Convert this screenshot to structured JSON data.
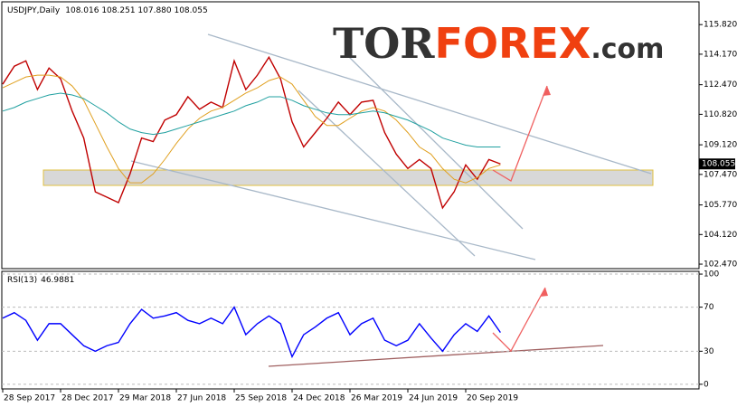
{
  "logo": {
    "prefix": "TOR",
    "brand": "FOREX",
    "suffix": ".com"
  },
  "chart_data": [
    {
      "type": "line",
      "title": "USDJPY,Daily",
      "subtitle": "108.016 108.251 107.880 108.055",
      "categories": [
        "28 Sep 2017",
        null,
        null,
        null,
        null,
        "28 Dec 2017",
        null,
        null,
        null,
        null,
        "29 Mar 2018",
        null,
        null,
        null,
        null,
        "27 Jun 2018",
        null,
        null,
        null,
        null,
        "25 Sep 2018",
        null,
        null,
        null,
        null,
        "24 Dec 2018",
        null,
        null,
        null,
        null,
        "26 Mar 2019",
        null,
        null,
        null,
        null,
        "24 Jun 2019",
        null,
        null,
        null,
        null,
        "20 Sep 2019",
        null,
        null,
        null
      ],
      "series": [
        {
          "color": "#c00000",
          "values": [
            112.5,
            113.5,
            113.8,
            112.2,
            113.4,
            112.8,
            111.0,
            109.5,
            106.5,
            106.2,
            105.9,
            107.5,
            109.5,
            109.3,
            110.5,
            110.8,
            111.8,
            111.1,
            111.5,
            111.2,
            113.8,
            112.2,
            113.0,
            114.0,
            112.8,
            110.4,
            109.0,
            109.8,
            110.6,
            111.5,
            110.8,
            111.5,
            111.6,
            109.8,
            108.6,
            107.8,
            108.3,
            107.8,
            105.6,
            106.5,
            108.0,
            107.2,
            108.3,
            108.055
          ]
        },
        {
          "color": "#e0a020",
          "values": [
            112.3,
            112.6,
            112.9,
            113.0,
            113.0,
            112.9,
            112.4,
            111.6,
            110.3,
            109.0,
            107.8,
            107.0,
            107.0,
            107.5,
            108.3,
            109.2,
            110.0,
            110.6,
            111.0,
            111.2,
            111.6,
            112.0,
            112.3,
            112.7,
            112.9,
            112.5,
            111.6,
            110.7,
            110.2,
            110.2,
            110.6,
            111.0,
            111.2,
            111.0,
            110.5,
            109.8,
            109.0,
            108.6,
            107.8,
            107.2,
            107.0,
            107.3,
            107.8,
            108.0
          ]
        },
        {
          "color": "#20a0a0",
          "values": [
            111.0,
            111.2,
            111.5,
            111.7,
            111.9,
            112.0,
            111.9,
            111.7,
            111.3,
            110.9,
            110.4,
            110.0,
            109.8,
            109.7,
            109.8,
            110.0,
            110.2,
            110.4,
            110.6,
            110.8,
            111.0,
            111.3,
            111.5,
            111.8,
            111.8,
            111.6,
            111.3,
            111.1,
            110.9,
            110.8,
            110.8,
            110.9,
            111.0,
            110.9,
            110.7,
            110.5,
            110.2,
            109.9,
            109.5,
            109.3,
            109.1,
            109.0,
            109.0,
            109.0
          ]
        }
      ],
      "last": 108.055,
      "ylim": [
        102.22,
        117.09
      ],
      "yticks": [
        {
          "value": 115.82,
          "label": "115.820"
        },
        {
          "value": 114.17,
          "label": "114.170"
        },
        {
          "value": 112.47,
          "label": "112.470"
        },
        {
          "value": 110.82,
          "label": "110.820"
        },
        {
          "value": 109.12,
          "label": "109.120"
        },
        {
          "value": 107.47,
          "label": "107.470"
        },
        {
          "value": 105.77,
          "label": "105.770"
        },
        {
          "value": 104.12,
          "label": "104.120"
        },
        {
          "value": 102.47,
          "label": "102.470"
        }
      ]
    },
    {
      "type": "line",
      "title": "RSI(13)",
      "value": 46.9881,
      "series": [
        {
          "color": "#0000ff",
          "values": [
            60,
            65,
            58,
            40,
            55,
            55,
            45,
            35,
            30,
            35,
            38,
            55,
            68,
            60,
            62,
            65,
            58,
            55,
            60,
            55,
            70,
            45,
            55,
            62,
            55,
            25,
            45,
            52,
            60,
            65,
            45,
            55,
            60,
            40,
            35,
            40,
            55,
            42,
            30,
            45,
            55,
            48,
            62,
            47
          ]
        }
      ],
      "ylim": [
        -4.2,
        102.5
      ],
      "yticks": [
        0,
        30,
        70,
        100
      ],
      "grid": true
    }
  ]
}
